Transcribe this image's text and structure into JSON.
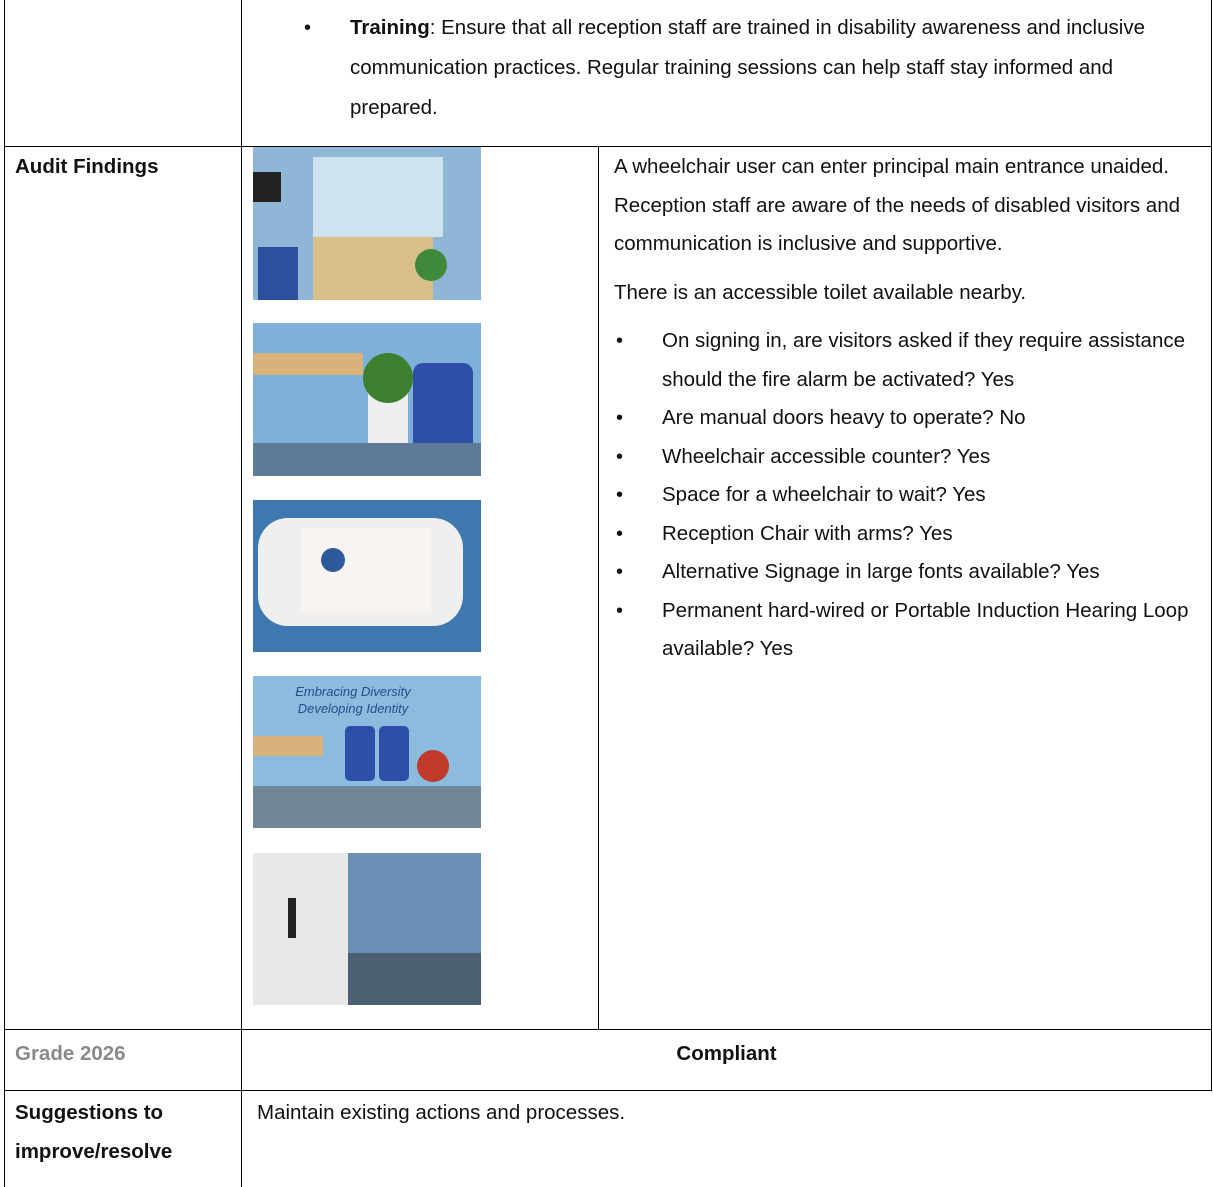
{
  "top_row": {
    "bullet_label": "Training",
    "bullet_text": ": Ensure that all reception staff are trained in disability awareness and inclusive communication practices. Regular training sessions can help staff stay informed and prepared."
  },
  "audit": {
    "label": "Audit Findings",
    "photo_texts": [
      "Embracing Diversity",
      "Developing Identity"
    ],
    "paragraphs": [
      "A wheelchair user can enter principal main entrance unaided. Reception staff are aware of the needs of disabled visitors and communication is inclusive and supportive.",
      "There is an accessible toilet available nearby."
    ],
    "bullets": [
      "On signing in, are visitors asked if they require assistance should the fire alarm be activated? Yes",
      "Are manual doors heavy to operate? No",
      "Wheelchair accessible counter? Yes",
      "Space for a wheelchair to wait? Yes",
      "Reception Chair with arms? Yes",
      "Alternative Signage in large fonts available? Yes",
      "Permanent hard-wired or Portable Induction Hearing Loop available? Yes"
    ]
  },
  "grade": {
    "label": "Grade 2026",
    "value": "Compliant"
  },
  "suggestions": {
    "label": "Suggestions to improve/resolve",
    "text": "Maintain existing actions and processes."
  }
}
